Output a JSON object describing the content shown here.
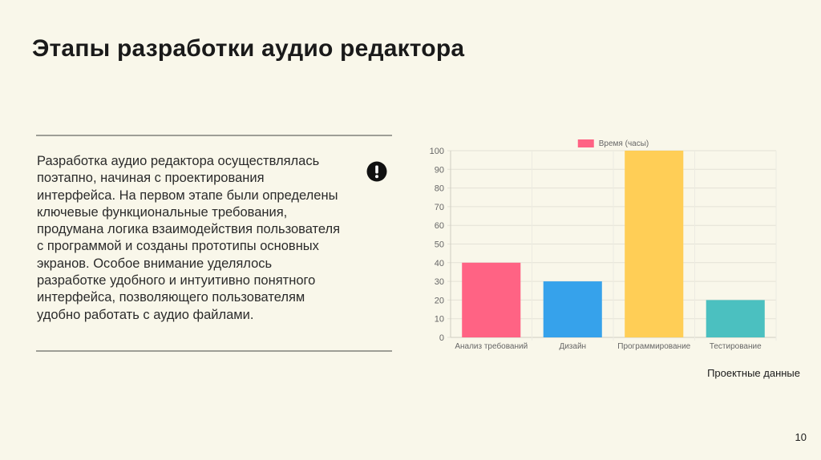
{
  "slide": {
    "title": "Этапы разработки аудио редактора",
    "body": "Разработка аудио редактора осуществлялась поэтапно, начиная с проектирования интерфейса. На первом этапе были определены ключевые функциональные требования, продумана логика взаимодействия пользователя с программой и созданы прототипы основных экранов. Особое внимание уделялось разработке удобного и интуитивно понятного интерфейса, позволяющего пользователям удобно работать с аудио файлами.",
    "alert_icon": "exclamation-circle-icon",
    "caption": "Проектные данные",
    "page_number": "10",
    "rule_color": "#9e9e96"
  },
  "chart_data": {
    "type": "bar",
    "categories": [
      "Анализ требований",
      "Дизайн",
      "Программирование",
      "Тестирование"
    ],
    "series": [
      {
        "name": "Время (часы)",
        "values": [
          40,
          30,
          100,
          20
        ],
        "colors": [
          "#ff6384",
          "#36a2eb",
          "#ffce56",
          "#4bc0c0"
        ]
      }
    ],
    "ylim": [
      0,
      100
    ],
    "yticks": [
      0,
      10,
      20,
      30,
      40,
      50,
      60,
      70,
      80,
      90,
      100
    ],
    "legend": "top-center",
    "grid": true,
    "xlabel": "",
    "ylabel": ""
  }
}
